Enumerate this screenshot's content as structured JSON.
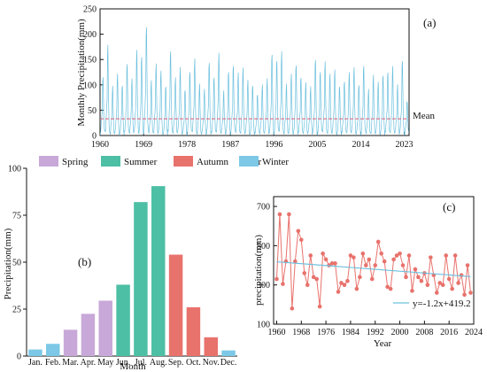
{
  "chart_data": [
    {
      "panel_label": "(a)",
      "type": "line",
      "xlabel": "Year",
      "ylabel": "Monthly Precipitation(mm)",
      "ylim": [
        0,
        250
      ],
      "xlim": [
        1960,
        2024
      ],
      "x_ticks": [
        1960,
        1969,
        1978,
        1987,
        1996,
        2005,
        2014,
        2023
      ],
      "y_ticks": [
        0,
        50,
        100,
        150,
        200,
        250
      ],
      "series": [
        {
          "name": "Mean",
          "kind": "horizontal-dashed",
          "value": 33,
          "color": "#d9607a"
        }
      ],
      "monthly_series_color": "#6cc0de",
      "annual_peaks_mm": [
        118,
        175,
        96,
        122,
        100,
        145,
        110,
        168,
        156,
        217,
        105,
        140,
        128,
        98,
        170,
        112,
        134,
        90,
        128,
        148,
        100,
        92,
        145,
        118,
        160,
        88,
        126,
        140,
        120,
        132,
        110,
        100,
        84,
        98,
        112,
        160,
        150,
        162,
        100,
        122,
        140,
        118,
        102,
        96,
        150,
        128,
        142,
        120,
        130,
        98,
        110,
        122,
        134,
        100,
        140,
        88,
        118,
        106,
        120,
        128,
        134,
        100,
        148,
        70
      ],
      "grid": false
    },
    {
      "panel_label": "(b)",
      "type": "bar",
      "xlabel": "Month",
      "ylabel": "Precipitation(mm)",
      "ylim": [
        0,
        100
      ],
      "y_ticks": [
        0,
        25,
        50,
        75,
        100
      ],
      "categories": [
        "Jan.",
        "Feb.",
        "Mar.",
        "Apr.",
        "May",
        "Jun.",
        "Jul.",
        "Aug.",
        "Sep.",
        "Oct.",
        "Nov.",
        "Dec."
      ],
      "values": [
        3.5,
        6.5,
        14,
        22.5,
        29.5,
        38,
        82,
        90.5,
        54,
        26,
        10,
        3
      ],
      "bar_colors": [
        "#7cc8e6",
        "#7cc8e6",
        "#c8a8d8",
        "#c8a8d8",
        "#c8a8d8",
        "#4dbfa5",
        "#4dbfa5",
        "#4dbfa5",
        "#e8726c",
        "#e8726c",
        "#e8726c",
        "#7cc8e6"
      ],
      "legend": [
        {
          "name": "Spring",
          "color": "#c8a8d8"
        },
        {
          "name": "Summer",
          "color": "#4dbfa5"
        },
        {
          "name": "Autumn",
          "color": "#e8726c"
        },
        {
          "name": "Winter",
          "color": "#7cc8e6"
        }
      ],
      "legend_position": "top",
      "grid": false
    },
    {
      "panel_label": "(c)",
      "type": "line",
      "xlabel": "Year",
      "ylabel": "precipitation(mm)",
      "ylim": [
        100,
        750
      ],
      "xlim": [
        1959,
        2024
      ],
      "x_ticks": [
        1960,
        1968,
        1976,
        1984,
        1992,
        2000,
        2008,
        2016,
        2024
      ],
      "y_ticks": [
        100,
        300,
        500,
        700
      ],
      "x": [
        1960,
        1961,
        1962,
        1963,
        1964,
        1965,
        1966,
        1967,
        1968,
        1969,
        1970,
        1971,
        1972,
        1973,
        1974,
        1975,
        1976,
        1977,
        1978,
        1979,
        1980,
        1981,
        1982,
        1983,
        1984,
        1985,
        1986,
        1987,
        1988,
        1989,
        1990,
        1991,
        1992,
        1993,
        1994,
        1995,
        1996,
        1997,
        1998,
        1999,
        2000,
        2001,
        2002,
        2003,
        2004,
        2005,
        2006,
        2007,
        2008,
        2009,
        2010,
        2011,
        2012,
        2013,
        2014,
        2015,
        2016,
        2017,
        2018,
        2019,
        2020,
        2021,
        2022,
        2023
      ],
      "values": [
        330,
        660,
        305,
        420,
        660,
        180,
        420,
        575,
        530,
        360,
        300,
        450,
        340,
        330,
        190,
        460,
        430,
        400,
        410,
        410,
        265,
        310,
        300,
        320,
        450,
        440,
        280,
        340,
        460,
        400,
        430,
        330,
        400,
        520,
        460,
        420,
        290,
        280,
        430,
        450,
        460,
        400,
        340,
        450,
        270,
        380,
        340,
        320,
        360,
        300,
        440,
        350,
        260,
        310,
        300,
        450,
        330,
        280,
        450,
        310,
        350,
        250,
        400,
        260
      ],
      "series": [
        {
          "name": "y=-1.2x+419.2",
          "kind": "trend",
          "slope": -1.2,
          "intercept": 419.2,
          "color": "#6cc0de"
        }
      ],
      "point_color": "#e8726c",
      "legend_position": "bottom-right",
      "grid": false
    }
  ]
}
